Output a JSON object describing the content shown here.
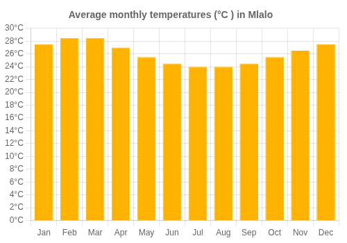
{
  "chart_data": {
    "type": "bar",
    "title": "Average monthly temperatures (°C ) in Mlalo",
    "categories": [
      "Jan",
      "Feb",
      "Mar",
      "Apr",
      "May",
      "Jun",
      "Jul",
      "Aug",
      "Sep",
      "Oct",
      "Nov",
      "Dec"
    ],
    "values": [
      27.5,
      28.5,
      28.5,
      27.0,
      25.5,
      24.5,
      24.0,
      24.0,
      24.5,
      25.5,
      26.5,
      27.5
    ],
    "color": "#FFB300",
    "ylim": [
      0,
      30
    ],
    "yticks": [
      {
        "value": 0,
        "label": "0°C"
      },
      {
        "value": 2,
        "label": "2°C"
      },
      {
        "value": 4,
        "label": "4°C"
      },
      {
        "value": 6,
        "label": "6°C"
      },
      {
        "value": 8,
        "label": "8°C"
      },
      {
        "value": 10,
        "label": "10°C"
      },
      {
        "value": 12,
        "label": "12°C"
      },
      {
        "value": 14,
        "label": "14°C"
      },
      {
        "value": 16,
        "label": "16°C"
      },
      {
        "value": 18,
        "label": "18°C"
      },
      {
        "value": 20,
        "label": "20°C"
      },
      {
        "value": 22,
        "label": "22°C"
      },
      {
        "value": 24,
        "label": "24°C"
      },
      {
        "value": 26,
        "label": "26°C"
      },
      {
        "value": 28,
        "label": "28°C"
      },
      {
        "value": 30,
        "label": "30°C"
      }
    ],
    "grid": true
  }
}
